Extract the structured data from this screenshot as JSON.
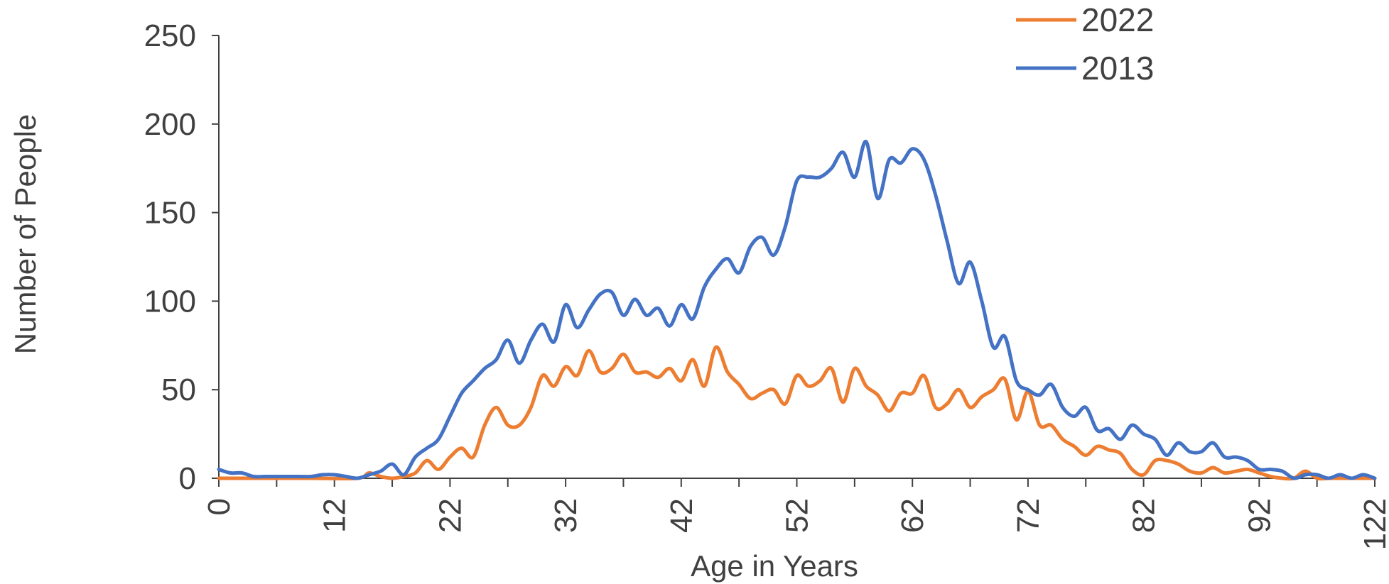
{
  "chart_data": {
    "type": "line",
    "xlabel": "Age in Years",
    "ylabel": "Number of People",
    "ylim": [
      0,
      250
    ],
    "yticks": [
      "0",
      "50",
      "100",
      "150",
      "200",
      "250"
    ],
    "xticks": [
      "0",
      "12",
      "22",
      "32",
      "42",
      "52",
      "62",
      "72",
      "82",
      "92",
      "122"
    ],
    "grid": false,
    "legend_position": "top-right",
    "series": [
      {
        "name": "2022",
        "color": "#ED7D31",
        "points": [
          [
            0,
            0
          ],
          [
            4,
            0
          ],
          [
            8,
            0
          ],
          [
            12,
            0
          ],
          [
            13,
            3
          ],
          [
            14,
            1
          ],
          [
            15,
            0
          ],
          [
            16,
            1
          ],
          [
            17,
            3
          ],
          [
            18,
            10
          ],
          [
            19,
            5
          ],
          [
            20,
            12
          ],
          [
            21,
            17
          ],
          [
            22,
            12
          ],
          [
            23,
            30
          ],
          [
            24,
            40
          ],
          [
            25,
            30
          ],
          [
            26,
            30
          ],
          [
            27,
            40
          ],
          [
            28,
            58
          ],
          [
            29,
            52
          ],
          [
            30,
            63
          ],
          [
            31,
            58
          ],
          [
            32,
            72
          ],
          [
            33,
            60
          ],
          [
            34,
            62
          ],
          [
            35,
            70
          ],
          [
            36,
            60
          ],
          [
            37,
            60
          ],
          [
            38,
            57
          ],
          [
            39,
            62
          ],
          [
            40,
            55
          ],
          [
            41,
            67
          ],
          [
            42,
            52
          ],
          [
            43,
            74
          ],
          [
            44,
            60
          ],
          [
            45,
            53
          ],
          [
            46,
            45
          ],
          [
            47,
            48
          ],
          [
            48,
            50
          ],
          [
            49,
            42
          ],
          [
            50,
            58
          ],
          [
            51,
            52
          ],
          [
            52,
            55
          ],
          [
            53,
            62
          ],
          [
            54,
            43
          ],
          [
            55,
            62
          ],
          [
            56,
            52
          ],
          [
            57,
            47
          ],
          [
            58,
            38
          ],
          [
            59,
            48
          ],
          [
            60,
            48
          ],
          [
            61,
            58
          ],
          [
            62,
            40
          ],
          [
            63,
            42
          ],
          [
            64,
            50
          ],
          [
            65,
            40
          ],
          [
            66,
            46
          ],
          [
            67,
            50
          ],
          [
            68,
            56
          ],
          [
            69,
            33
          ],
          [
            70,
            49
          ],
          [
            71,
            30
          ],
          [
            72,
            30
          ],
          [
            73,
            22
          ],
          [
            74,
            18
          ],
          [
            75,
            13
          ],
          [
            76,
            18
          ],
          [
            77,
            16
          ],
          [
            78,
            14
          ],
          [
            79,
            5
          ],
          [
            80,
            2
          ],
          [
            81,
            10
          ],
          [
            82,
            10
          ],
          [
            83,
            8
          ],
          [
            84,
            4
          ],
          [
            85,
            3
          ],
          [
            86,
            6
          ],
          [
            87,
            3
          ],
          [
            88,
            4
          ],
          [
            89,
            5
          ],
          [
            90,
            3
          ],
          [
            91,
            1
          ],
          [
            92,
            0
          ],
          [
            93,
            0
          ],
          [
            94,
            4
          ],
          [
            95,
            0
          ],
          [
            96,
            0
          ],
          [
            97,
            0
          ],
          [
            98,
            0
          ],
          [
            99,
            0
          ],
          [
            100,
            0
          ]
        ]
      },
      {
        "name": "2013",
        "color": "#4472C4",
        "points": [
          [
            0,
            5
          ],
          [
            1,
            3
          ],
          [
            2,
            3
          ],
          [
            3,
            1
          ],
          [
            4,
            1
          ],
          [
            5,
            1
          ],
          [
            6,
            1
          ],
          [
            7,
            1
          ],
          [
            8,
            1
          ],
          [
            9,
            2
          ],
          [
            10,
            2
          ],
          [
            11,
            1
          ],
          [
            12,
            0
          ],
          [
            13,
            2
          ],
          [
            14,
            4
          ],
          [
            15,
            8
          ],
          [
            16,
            2
          ],
          [
            17,
            12
          ],
          [
            18,
            17
          ],
          [
            19,
            22
          ],
          [
            20,
            35
          ],
          [
            21,
            48
          ],
          [
            22,
            55
          ],
          [
            23,
            62
          ],
          [
            24,
            67
          ],
          [
            25,
            78
          ],
          [
            26,
            65
          ],
          [
            27,
            78
          ],
          [
            28,
            87
          ],
          [
            29,
            77
          ],
          [
            30,
            98
          ],
          [
            31,
            85
          ],
          [
            32,
            95
          ],
          [
            33,
            104
          ],
          [
            34,
            105
          ],
          [
            35,
            92
          ],
          [
            36,
            101
          ],
          [
            37,
            92
          ],
          [
            38,
            96
          ],
          [
            39,
            86
          ],
          [
            40,
            98
          ],
          [
            41,
            90
          ],
          [
            42,
            108
          ],
          [
            43,
            118
          ],
          [
            44,
            124
          ],
          [
            45,
            116
          ],
          [
            46,
            131
          ],
          [
            47,
            136
          ],
          [
            48,
            126
          ],
          [
            49,
            142
          ],
          [
            50,
            168
          ],
          [
            51,
            170
          ],
          [
            52,
            170
          ],
          [
            53,
            175
          ],
          [
            54,
            184
          ],
          [
            55,
            170
          ],
          [
            56,
            190
          ],
          [
            57,
            158
          ],
          [
            58,
            180
          ],
          [
            59,
            178
          ],
          [
            60,
            186
          ],
          [
            61,
            180
          ],
          [
            62,
            160
          ],
          [
            63,
            134
          ],
          [
            64,
            110
          ],
          [
            65,
            122
          ],
          [
            66,
            100
          ],
          [
            67,
            74
          ],
          [
            68,
            80
          ],
          [
            69,
            55
          ],
          [
            70,
            50
          ],
          [
            71,
            47
          ],
          [
            72,
            53
          ],
          [
            73,
            40
          ],
          [
            74,
            35
          ],
          [
            75,
            40
          ],
          [
            76,
            27
          ],
          [
            77,
            28
          ],
          [
            78,
            22
          ],
          [
            79,
            30
          ],
          [
            80,
            25
          ],
          [
            81,
            22
          ],
          [
            82,
            13
          ],
          [
            83,
            20
          ],
          [
            84,
            15
          ],
          [
            85,
            15
          ],
          [
            86,
            20
          ],
          [
            87,
            12
          ],
          [
            88,
            12
          ],
          [
            89,
            10
          ],
          [
            90,
            5
          ],
          [
            91,
            5
          ],
          [
            92,
            4
          ],
          [
            93,
            0
          ],
          [
            94,
            2
          ],
          [
            95,
            2
          ],
          [
            96,
            0
          ],
          [
            97,
            2
          ],
          [
            98,
            0
          ],
          [
            99,
            2
          ],
          [
            100,
            0
          ]
        ]
      }
    ]
  }
}
